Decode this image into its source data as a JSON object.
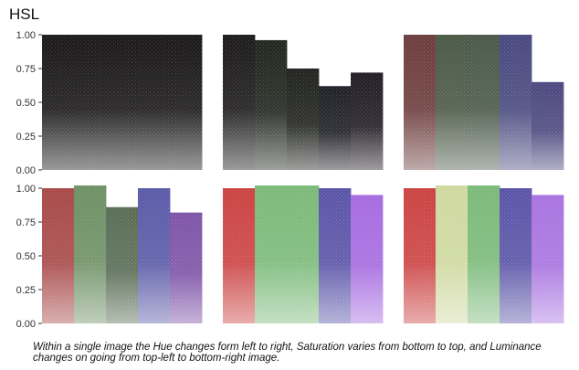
{
  "title": "HSL",
  "caption": "Within a single image the Hue changes form left to right, Saturation varies from bottom to top, and Luminance changes on going from top-left to bottom-right image.",
  "chart_data": {
    "type": "area",
    "layout": "2 rows x 3 columns of panels, shared y axis per row",
    "ylim": [
      0,
      1
    ],
    "y_ticks": [
      "0.00",
      "0.25",
      "0.50",
      "0.75",
      "1.00"
    ],
    "hue_columns": 5,
    "background": "#ffffff",
    "panels": [
      {
        "luminance_step": 1,
        "colors": [
          "#1c1a1b",
          "#1c1a1b",
          "#1c1a1b",
          "#1c1a1b",
          "#1c1a1b"
        ],
        "heights": [
          1.0,
          1.0,
          1.0,
          1.0,
          1.0
        ]
      },
      {
        "luminance_step": 2,
        "colors": [
          "#1e1c1c",
          "#232821",
          "#232521",
          "#22222a",
          "#241f27"
        ],
        "heights": [
          1.0,
          0.96,
          0.75,
          0.62,
          0.72
        ]
      },
      {
        "luminance_step": 3,
        "colors": [
          "#6e3e3e",
          "#4c5a48",
          "#4b5a4b",
          "#4a4a80",
          "#4e4a80"
        ],
        "heights": [
          1.0,
          1.0,
          1.0,
          1.0,
          0.65
        ]
      },
      {
        "luminance_step": 4,
        "colors": [
          "#a84a4a",
          "#6f9166",
          "#5a6e57",
          "#5b5ba8",
          "#7f55a8"
        ],
        "heights": [
          1.0,
          1.02,
          0.86,
          1.0,
          0.82
        ]
      },
      {
        "luminance_step": 5,
        "colors": [
          "#cc4444",
          "#7cba7a",
          "#7cba7a",
          "#5b55a8",
          "#a66ce0"
        ],
        "heights": [
          1.0,
          1.02,
          1.02,
          1.0,
          0.95
        ]
      },
      {
        "luminance_step": 6,
        "colors": [
          "#cc4444",
          "#cfd9a0",
          "#7cba7a",
          "#5b55a8",
          "#a974e0"
        ],
        "heights": [
          1.0,
          1.02,
          1.02,
          1.0,
          0.95
        ]
      }
    ]
  }
}
